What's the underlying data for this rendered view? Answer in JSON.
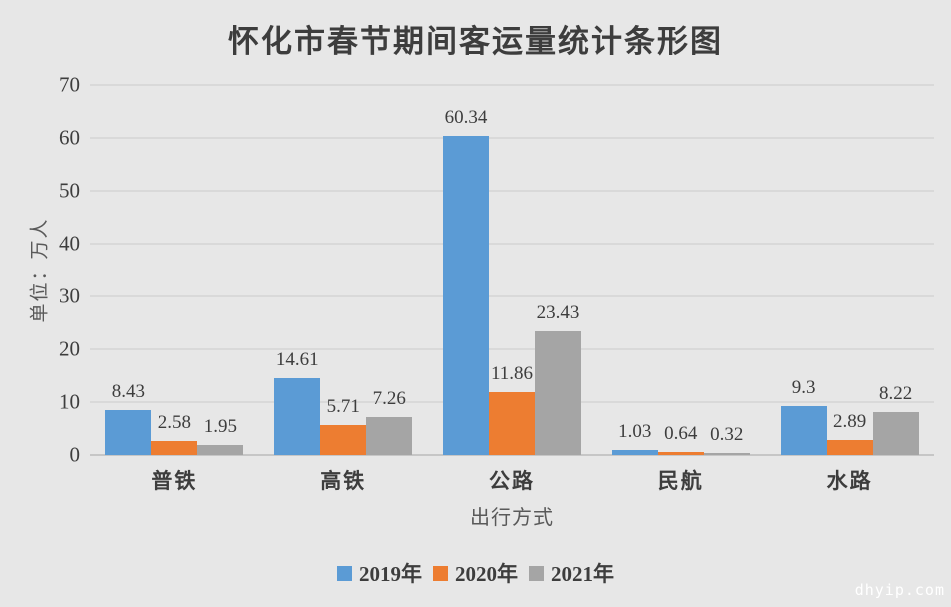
{
  "watermark": "dhyip.com",
  "colors": {
    "background": "#e7e7e7",
    "gridline": "#d9d9d9",
    "axis_line": "#c6c6c6",
    "text_dark": "#3d3d3d",
    "text_secondary": "#595959"
  },
  "chart_data": {
    "type": "bar",
    "title": "怀化市春节期间客运量统计条形图",
    "xlabel": "出行方式",
    "ylabel": "单位：万人",
    "categories": [
      "普铁",
      "高铁",
      "公路",
      "民航",
      "水路"
    ],
    "series": [
      {
        "name": "2019年",
        "color": "#5b9bd5",
        "values": [
          8.43,
          14.61,
          60.34,
          1.03,
          9.3
        ]
      },
      {
        "name": "2020年",
        "color": "#ed7d31",
        "values": [
          2.58,
          5.71,
          11.86,
          0.64,
          2.89
        ]
      },
      {
        "name": "2021年",
        "color": "#a5a5a5",
        "values": [
          1.95,
          7.26,
          23.43,
          0.32,
          8.22
        ]
      }
    ],
    "ylim": [
      0,
      70
    ],
    "yticks": [
      0,
      10,
      20,
      30,
      40,
      50,
      60,
      70
    ],
    "grid": true,
    "legend_position": "bottom",
    "data_labels": true
  }
}
